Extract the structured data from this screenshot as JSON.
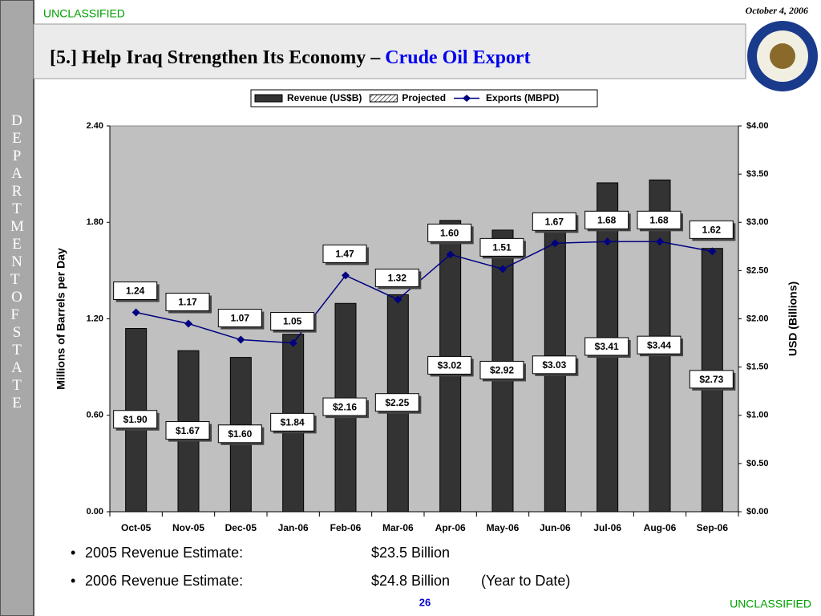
{
  "header": {
    "classification": "UNCLASSIFIED",
    "date": "October 4, 2006",
    "title": "[5.] Help Iraq Strengthen Its Economy – ",
    "title_highlight": "Crude Oil Export"
  },
  "side_text": "DEPARTMENT OF STATE",
  "chart_data": {
    "type": "bar",
    "categories": [
      "Oct-05",
      "Nov-05",
      "Dec-05",
      "Jan-06",
      "Feb-06",
      "Mar-06",
      "Apr-06",
      "May-06",
      "Jun-06",
      "Jul-06",
      "Aug-06",
      "Sep-06"
    ],
    "series": [
      {
        "name": "Revenue (US$B)",
        "color": "#333333",
        "axis": "y2",
        "type": "bar",
        "values": [
          1.9,
          1.67,
          1.6,
          1.84,
          2.16,
          2.25,
          3.02,
          2.92,
          3.03,
          3.41,
          3.44,
          2.73
        ],
        "value_labels": [
          "$1.90",
          "$1.67",
          "$1.60",
          "$1.84",
          "$2.16",
          "$2.25",
          "$3.02",
          "$2.92",
          "$3.03",
          "$3.41",
          "$3.44",
          "$2.73"
        ]
      },
      {
        "name": "Projected",
        "color": "#ffffff",
        "axis": "y2",
        "type": "bar",
        "values": [
          null,
          null,
          null,
          null,
          null,
          null,
          null,
          null,
          null,
          null,
          null,
          null
        ]
      },
      {
        "name": "Exports (MBPD)",
        "color": "#000080",
        "axis": "y",
        "type": "line",
        "values": [
          1.24,
          1.17,
          1.07,
          1.05,
          1.47,
          1.32,
          1.6,
          1.51,
          1.67,
          1.68,
          1.68,
          1.62
        ],
        "value_labels": [
          "1.24",
          "1.17",
          "1.07",
          "1.05",
          "1.47",
          "1.32",
          "1.60",
          "1.51",
          "1.67",
          "1.68",
          "1.68",
          "1.62"
        ]
      }
    ],
    "ylabel": "Millions of Barrels per Day",
    "y2label": "USD (Billions)",
    "ylim": [
      0,
      2.4
    ],
    "yticks": [
      {
        "value": 0,
        "label": "0.00"
      },
      {
        "value": 0.6,
        "label": "0.60"
      },
      {
        "value": 1.2,
        "label": "1.20"
      },
      {
        "value": 1.8,
        "label": "1.80"
      },
      {
        "value": 2.4,
        "label": "2.40"
      }
    ],
    "y2lim": [
      0,
      4
    ],
    "y2ticks": [
      {
        "value": 0,
        "label": "$0.00"
      },
      {
        "value": 0.5,
        "label": "$0.50"
      },
      {
        "value": 1,
        "label": "$1.00"
      },
      {
        "value": 1.5,
        "label": "$1.50"
      },
      {
        "value": 2,
        "label": "$2.00"
      },
      {
        "value": 2.5,
        "label": "$2.50"
      },
      {
        "value": 3,
        "label": "$3.00"
      },
      {
        "value": 3.5,
        "label": "$3.50"
      },
      {
        "value": 4,
        "label": "$4.00"
      }
    ],
    "legend": "top",
    "plot_background": "#c0c0c0"
  },
  "bullets": [
    [
      "2005 Revenue Estimate:",
      "$23.5 Billion"
    ],
    [
      "2006 Revenue Estimate:",
      "$24.8 Billion",
      "(Year to Date)"
    ]
  ],
  "footer": {
    "page": "26",
    "classification": "UNCLASSIFIED"
  }
}
